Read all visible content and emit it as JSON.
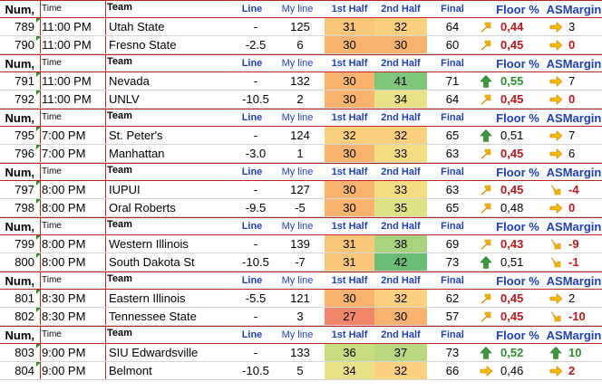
{
  "header": {
    "num": "Num,",
    "time": "Time",
    "team": "Team",
    "line": "Line",
    "my_line": "My line",
    "first_half": "1st Half",
    "second_half": "2nd Half",
    "final": "Final",
    "floor_pct": "Floor %",
    "asmargin": "ASMargin"
  },
  "colors": {
    "header_rule": "#b8271f",
    "header_blue": "#1f3fbf",
    "value_red": "#c0151b",
    "value_green": "#2e8f2e",
    "arrow_orange": "#f5b800",
    "arrow_green": "#3a9a3a"
  },
  "games": [
    {
      "rows": [
        {
          "num": "789",
          "time": "11:00 PM",
          "team": "Utah State",
          "line": "-",
          "my_line": "125",
          "h1": "31",
          "h1_color": "#f9c67a",
          "h2": "32",
          "h2_color": "#fbd07e",
          "final": "64",
          "floor_icon": "arrow-up-right-orange",
          "floor": "0,44",
          "floor_style": "red",
          "as_icon": "arrow-right-orange",
          "as": "3",
          "as_style": "normal"
        },
        {
          "num": "790",
          "time": "11:00 PM",
          "team": "Fresno State",
          "line": "-2.5",
          "my_line": "6",
          "h1": "30",
          "h1_color": "#f8b36f",
          "h2": "30",
          "h2_color": "#f8b36f",
          "final": "60",
          "floor_icon": "arrow-up-right-orange",
          "floor": "0,45",
          "floor_style": "red",
          "as_icon": "arrow-right-orange",
          "as": "0",
          "as_style": "red"
        }
      ]
    },
    {
      "rows": [
        {
          "num": "791",
          "time": "11:00 PM",
          "team": "Nevada",
          "line": "-",
          "my_line": "132",
          "h1": "30",
          "h1_color": "#f8b36f",
          "h2": "41",
          "h2_color": "#7fc57a",
          "final": "71",
          "floor_icon": "arrow-up-green",
          "floor": "0,55",
          "floor_style": "green",
          "as_icon": "arrow-right-orange",
          "as": "7",
          "as_style": "normal"
        },
        {
          "num": "792",
          "time": "11:00 PM",
          "team": "UNLV",
          "line": "-10.5",
          "my_line": "2",
          "h1": "30",
          "h1_color": "#f8b36f",
          "h2": "34",
          "h2_color": "#e8e185",
          "final": "64",
          "floor_icon": "arrow-up-right-orange",
          "floor": "0,45",
          "floor_style": "red",
          "as_icon": "arrow-right-orange",
          "as": "0",
          "as_style": "red"
        }
      ]
    },
    {
      "rows": [
        {
          "num": "795",
          "time": "7:00 PM",
          "team": "St. Peter's",
          "line": "-",
          "my_line": "124",
          "h1": "32",
          "h1_color": "#fbd07e",
          "h2": "32",
          "h2_color": "#fbd07e",
          "final": "65",
          "floor_icon": "arrow-up-green",
          "floor": "0,51",
          "floor_style": "normal",
          "as_icon": "arrow-right-orange",
          "as": "7",
          "as_style": "normal"
        },
        {
          "num": "796",
          "time": "7:00 PM",
          "team": "Manhattan",
          "line": "-3.0",
          "my_line": "1",
          "h1": "30",
          "h1_color": "#f8b36f",
          "h2": "33",
          "h2_color": "#f3dc82",
          "final": "63",
          "floor_icon": "arrow-up-right-orange",
          "floor": "0,45",
          "floor_style": "red",
          "as_icon": "arrow-right-orange",
          "as": "6",
          "as_style": "normal"
        }
      ]
    },
    {
      "rows": [
        {
          "num": "797",
          "time": "8:00 PM",
          "team": "IUPUI",
          "line": "-",
          "my_line": "127",
          "h1": "30",
          "h1_color": "#f8b36f",
          "h2": "33",
          "h2_color": "#f3dc82",
          "final": "63",
          "floor_icon": "arrow-up-right-orange",
          "floor": "0,45",
          "floor_style": "red",
          "as_icon": "arrow-down-right-orange",
          "as": "-4",
          "as_style": "red"
        },
        {
          "num": "798",
          "time": "8:00 PM",
          "team": "Oral Roberts",
          "line": "-9.5",
          "my_line": "-5",
          "h1": "30",
          "h1_color": "#f8b36f",
          "h2": "35",
          "h2_color": "#dde284",
          "final": "65",
          "floor_icon": "arrow-up-right-orange",
          "floor": "0,48",
          "floor_style": "normal",
          "as_icon": "arrow-right-orange",
          "as": "0",
          "as_style": "red"
        }
      ]
    },
    {
      "rows": [
        {
          "num": "799",
          "time": "8:00 PM",
          "team": "Western Illinois",
          "line": "-",
          "my_line": "139",
          "h1": "31",
          "h1_color": "#f9c67a",
          "h2": "38",
          "h2_color": "#a8d37f",
          "final": "69",
          "floor_icon": "arrow-up-right-orange",
          "floor": "0,43",
          "floor_style": "red",
          "as_icon": "arrow-down-right-orange",
          "as": "-9",
          "as_style": "red"
        },
        {
          "num": "800",
          "time": "8:00 PM",
          "team": "South Dakota St",
          "line": "-10.5",
          "my_line": "-7",
          "h1": "31",
          "h1_color": "#f9c67a",
          "h2": "42",
          "h2_color": "#6cbd73",
          "final": "73",
          "floor_icon": "arrow-up-green",
          "floor": "0,51",
          "floor_style": "normal",
          "as_icon": "arrow-down-right-orange",
          "as": "-1",
          "as_style": "red"
        }
      ]
    },
    {
      "rows": [
        {
          "num": "801",
          "time": "8:30 PM",
          "team": "Eastern Illinois",
          "line": "-5.5",
          "my_line": "121",
          "h1": "30",
          "h1_color": "#f8b36f",
          "h2": "32",
          "h2_color": "#fbd07e",
          "final": "62",
          "floor_icon": "arrow-up-right-orange",
          "floor": "0,45",
          "floor_style": "red",
          "as_icon": "arrow-right-orange",
          "as": "2",
          "as_style": "normal"
        },
        {
          "num": "802",
          "time": "8:30 PM",
          "team": "Tennessee State",
          "line": "-",
          "my_line": "3",
          "h1": "27",
          "h1_color": "#f2866b",
          "h2": "30",
          "h2_color": "#f8b36f",
          "final": "57",
          "floor_icon": "arrow-up-right-orange",
          "floor": "0,45",
          "floor_style": "red",
          "as_icon": "arrow-down-right-orange",
          "as": "-10",
          "as_style": "red"
        }
      ]
    },
    {
      "rows": [
        {
          "num": "803",
          "time": "9:00 PM",
          "team": "SIU Edwardsville",
          "line": "-",
          "my_line": "133",
          "h1": "36",
          "h1_color": "#c8dc82",
          "h2": "37",
          "h2_color": "#b8d780",
          "final": "73",
          "floor_icon": "arrow-up-green",
          "floor": "0,52",
          "floor_style": "green",
          "as_icon": "arrow-up-green",
          "as": "10",
          "as_style": "green"
        },
        {
          "num": "804",
          "time": "9:00 PM",
          "team": "Belmont",
          "line": "-10.5",
          "my_line": "5",
          "h1": "34",
          "h1_color": "#e8e185",
          "h2": "32",
          "h2_color": "#fbd07e",
          "final": "66",
          "floor_icon": "arrow-right-orange",
          "floor": "0,46",
          "floor_style": "normal",
          "as_icon": "arrow-right-orange",
          "as": "2",
          "as_style": "red"
        }
      ]
    }
  ]
}
